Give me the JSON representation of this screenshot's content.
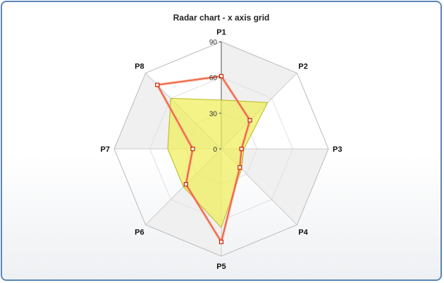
{
  "chart_data": {
    "type": "radar",
    "title": "Radar chart - x axis grid",
    "categories": [
      "P1",
      "P2",
      "P3",
      "P4",
      "P5",
      "P6",
      "P7",
      "P8"
    ],
    "range": [
      0,
      90
    ],
    "ticks": [
      0,
      30,
      60,
      90
    ],
    "series": [
      {
        "type": "area",
        "values": [
          41,
          55,
          19,
          24,
          66,
          45,
          45,
          60
        ],
        "color": "#eeee55"
      },
      {
        "type": "line",
        "values": [
          61,
          34,
          17,
          22,
          78,
          42,
          24,
          76
        ],
        "color": "#ee5533"
      }
    ],
    "grid": {
      "alternating_fill": "#f0f0f0",
      "line_color": "#c8c8c8"
    }
  }
}
